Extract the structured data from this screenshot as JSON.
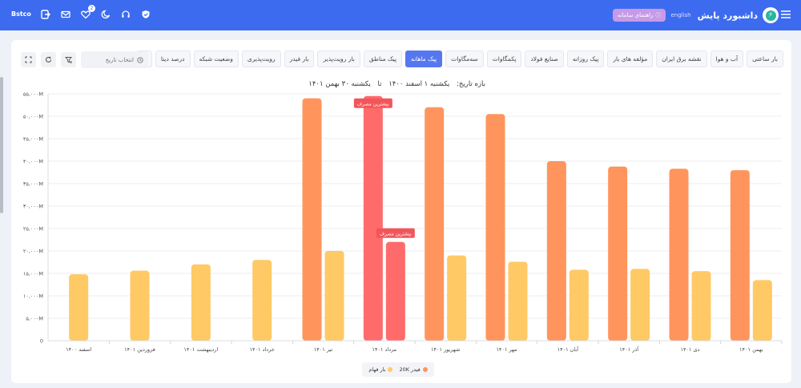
{
  "topbar": {
    "brand": "داشبورد پایش",
    "lang": "english",
    "guide": "راهنمای سامانه",
    "user": "Bstco",
    "notif_count": "2",
    "color": "#3d6bef"
  },
  "tabs": [
    {
      "label": "بار ساعتی"
    },
    {
      "label": "آب و هوا"
    },
    {
      "label": "نقشه برق ایران"
    },
    {
      "label": "مؤلفه های بار"
    },
    {
      "label": "پیک روزانه"
    },
    {
      "label": "صنایع فولاد"
    },
    {
      "label": "پکمگاوات"
    },
    {
      "label": "سه‌مگاوات"
    },
    {
      "label": "پیک ماهانه",
      "active": true
    },
    {
      "label": "پیک مناطق"
    },
    {
      "label": "بار رویت‌پذیر"
    },
    {
      "label": "بار فیدر"
    },
    {
      "label": "رویت‌پذیری"
    },
    {
      "label": "وضعیت شبکه"
    },
    {
      "label": "درصد دیتا"
    }
  ],
  "date_placeholder": "انتخاب تاریخ",
  "range": {
    "label": "بازه تاریخ:",
    "from": "یکشنبه ۱ اسفند ۱۴۰۰",
    "sep": "تا",
    "to": "یکشنبه ۳۰ بهمن ۱۴۰۱"
  },
  "chart_data": {
    "type": "bar",
    "categories": [
      "اسفند ۱۴۰۰",
      "فروردین ۱۴۰۱",
      "اردیبهشت ۱۴۰۱",
      "خرداد ۱۴۰۱",
      "تیر ۱۴۰۱",
      "مرداد ۱۴۰۱",
      "شهریور ۱۴۰۱",
      "مهر ۱۴۰۱",
      "آبان ۱۴۰۱",
      "آذر ۱۴۰۱",
      "دی ۱۴۰۱",
      "بهمن ۱۴۰۱"
    ],
    "series": [
      {
        "name": "فیدر 20K",
        "color": "#ff955d",
        "values": [
          null,
          null,
          null,
          null,
          54000000,
          54500000,
          52000000,
          50500000,
          40000000,
          38800000,
          38300000,
          38000000
        ]
      },
      {
        "name": "بار فهام",
        "color": "#ffc965",
        "values": [
          14800000,
          15600000,
          17000000,
          18000000,
          20000000,
          22000000,
          19000000,
          17600000,
          15800000,
          16000000,
          15500000,
          13500000
        ]
      }
    ],
    "highlight": {
      "label": "بیشترین مصرف",
      "color": "#ff6b6b",
      "category_index": 5
    },
    "y_ticks": [
      "0",
      "۵,۰۰۰M",
      "۱۰,۰۰۰M",
      "۱۵,۰۰۰M",
      "۲۰,۰۰۰M",
      "۲۵,۰۰۰M",
      "۳۰,۰۰۰M",
      "۳۵,۰۰۰M",
      "۴۰,۰۰۰M",
      "۴۵,۰۰۰M",
      "۵۰,۰۰۰M",
      "۵۵,۰۰۰M"
    ],
    "ylim": [
      0,
      55000000
    ],
    "grid": true,
    "legend_position": "bottom-center"
  },
  "legend": [
    {
      "label": "فیدر 20K",
      "color": "#ff955d"
    },
    {
      "label": "بار فهام",
      "color": "#ffc965"
    }
  ]
}
